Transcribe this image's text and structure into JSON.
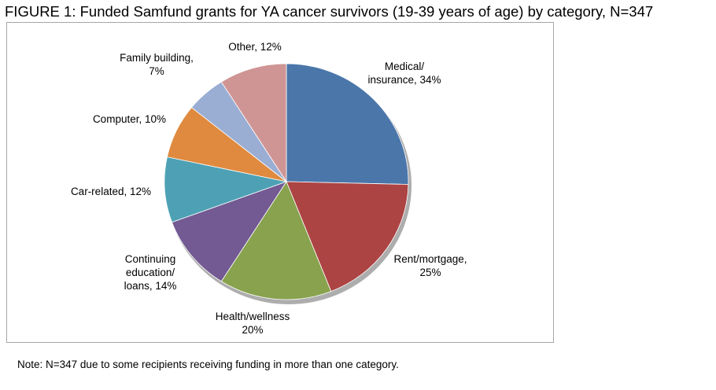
{
  "title": "FIGURE 1: Funded Samfund grants for YA cancer survivors (19-39 years of age) by category, N=347",
  "note": "Note: N=347 due to some recipients receiving funding in more than one category.",
  "chart_data": {
    "type": "pie",
    "title": "FIGURE 1: Funded Samfund grants for YA cancer survivors (19-39 years of age) by category, N=347",
    "unit": "%",
    "start_angle_deg": 0,
    "direction": "clockwise",
    "slices": [
      {
        "name": "Medical/ insurance",
        "value": 34,
        "label_lines": [
          "Medical/",
          "insurance, 34%"
        ],
        "color": "#4a76aa"
      },
      {
        "name": "Rent/mortgage",
        "value": 25,
        "label_lines": [
          "Rent/mortgage,",
          "25%"
        ],
        "color": "#ac4443"
      },
      {
        "name": "Health/wellness",
        "value": 20,
        "label_lines": [
          "Health/wellness",
          "20%"
        ],
        "color": "#88a24e"
      },
      {
        "name": "Continuing education/ loans",
        "value": 14,
        "label_lines": [
          "Continuing",
          "education/",
          "loans, 14%"
        ],
        "color": "#735a93"
      },
      {
        "name": "Car-related",
        "value": 12,
        "label_lines": [
          "Car-related, 12%"
        ],
        "color": "#4ea1b5"
      },
      {
        "name": "Computer",
        "value": 10,
        "label_lines": [
          "Computer, 10%"
        ],
        "color": "#df8a3f"
      },
      {
        "name": "Family building",
        "value": 7,
        "label_lines": [
          "Family building,",
          "7%"
        ],
        "color": "#9aadd3"
      },
      {
        "name": "Other",
        "value": 12,
        "label_lines": [
          "Other, 12%"
        ],
        "color": "#cf9595"
      }
    ]
  }
}
